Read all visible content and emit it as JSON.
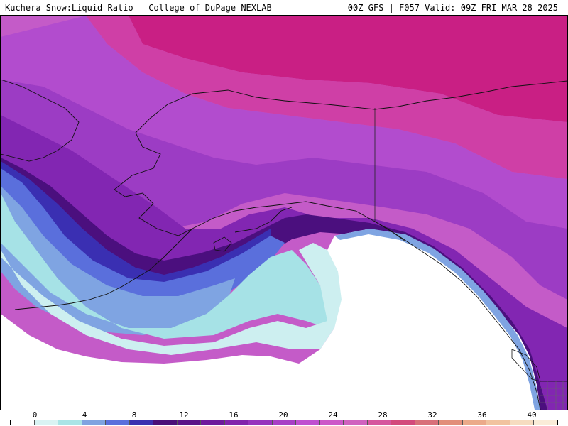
{
  "header": {
    "left_title": "Kuchera Snow:Liquid Ratio | College of DuPage NEXLAB",
    "right_title": "00Z GFS | F057 Valid: 09Z FRI MAR 28 2025"
  },
  "legend": {
    "tick_labels": [
      "0",
      "4",
      "8",
      "12",
      "16",
      "20",
      "24",
      "28",
      "32",
      "36",
      "40"
    ],
    "colors": [
      "#ffffff",
      "#d9f3f3",
      "#a9e4e6",
      "#7fa3e0",
      "#5a6fdc",
      "#3b2fb0",
      "#4a0f78",
      "#5a1488",
      "#6e1a9c",
      "#8124ac",
      "#9633bd",
      "#a83fc6",
      "#bf4fd0",
      "#cc58c8",
      "#d062bf",
      "#d6569e",
      "#d34a7c",
      "#d8707a",
      "#e28e7a",
      "#ebaa8a",
      "#f1c39f",
      "#f6dcc0",
      "#faecd8"
    ]
  },
  "map": {
    "fill_colors": {
      "ocean_white": "#ffffff",
      "cyan_light": "#cdeff0",
      "cyan": "#a6e2e6",
      "blue_light": "#7fa4e2",
      "blue": "#4f6fe0",
      "indigo": "#3a2fb2",
      "deep_purple": "#4b0f7e",
      "purple_dark": "#6a1aa0",
      "purple": "#8226b2",
      "violet": "#9c3cc4",
      "orchid": "#b24cce",
      "magenta_light": "#c45bc8",
      "magenta": "#cf3fa6",
      "magenta_dark": "#c91f84",
      "coast_line": "#111111"
    }
  }
}
